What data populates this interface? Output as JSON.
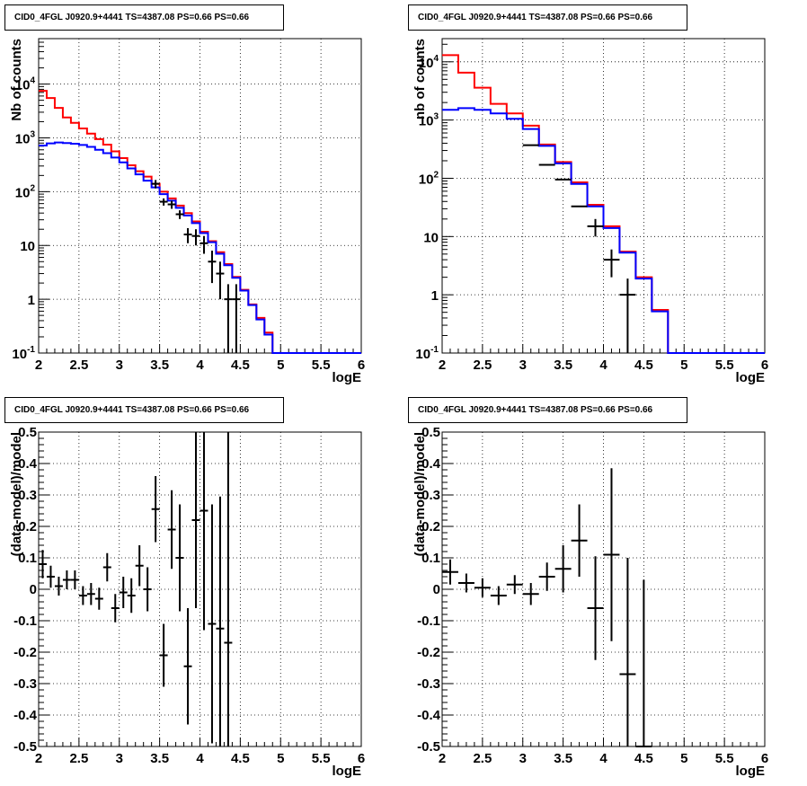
{
  "colors": {
    "total": "#ff0000",
    "model": "#0000ff",
    "data": "#000000",
    "frame": "#000000"
  },
  "chart_data": [
    {
      "id": "tl",
      "type": "line",
      "title": "CID0_4FGL J0920.9+4441 TS=4387.08 PS=0.66 PS=0.66",
      "xlabel": "logE",
      "ylabel": "Nb of counts",
      "xlim": [
        2,
        6
      ],
      "ylim": [
        0.1,
        70000
      ],
      "yscale": "log",
      "grid": true,
      "xticks": [
        "2",
        "2.5",
        "3",
        "3.5",
        "4",
        "4.5",
        "5",
        "5.5",
        "6"
      ],
      "yticks": [
        "10^-1",
        "1",
        "10",
        "10^2",
        "10^3",
        "10^4"
      ],
      "bin_width": 0.1,
      "series": [
        {
          "role": "total",
          "edges_start": 2.0,
          "values": [
            7500,
            5500,
            3600,
            2400,
            1900,
            1500,
            1200,
            950,
            750,
            560,
            420,
            310,
            240,
            190,
            140,
            100,
            75,
            55,
            40,
            28,
            18,
            12,
            7.5,
            4.5,
            2.6,
            1.5,
            0.8,
            0.45,
            0.24,
            0.1,
            0.1,
            0.1,
            0.1,
            0.1,
            0.1,
            0.1,
            0.1,
            0.1,
            0.1,
            0.1
          ]
        },
        {
          "role": "model",
          "edges_start": 2.0,
          "values": [
            720,
            790,
            820,
            800,
            780,
            740,
            680,
            600,
            520,
            430,
            350,
            270,
            210,
            160,
            120,
            90,
            68,
            50,
            36,
            26,
            17,
            11.5,
            7,
            4.3,
            2.5,
            1.45,
            0.78,
            0.42,
            0.22,
            0.1,
            0.1,
            0.1,
            0.1,
            0.1,
            0.1,
            0.1,
            0.1,
            0.1,
            0.1,
            0.1
          ]
        },
        {
          "role": "data",
          "points": [
            [
              3.45,
              140,
              25
            ],
            [
              3.55,
              65,
              10
            ],
            [
              3.65,
              58,
              10
            ],
            [
              3.75,
              38,
              7
            ],
            [
              3.85,
              16,
              5
            ],
            [
              3.95,
              15,
              5
            ],
            [
              4.05,
              11,
              4
            ],
            [
              4.15,
              5,
              3
            ],
            [
              4.25,
              3,
              2
            ],
            [
              4.35,
              1,
              0.9
            ],
            [
              4.45,
              1,
              0.9
            ]
          ]
        }
      ]
    },
    {
      "id": "tr",
      "type": "line",
      "title": "CID0_4FGL J0920.9+4441 TS=4387.08 PS=0.66 PS=0.66",
      "xlabel": "logE",
      "ylabel": "nb of counts",
      "xlim": [
        2,
        6
      ],
      "ylim": [
        0.1,
        25000
      ],
      "yscale": "log",
      "grid": true,
      "xticks": [
        "2",
        "2.5",
        "3",
        "3.5",
        "4",
        "4.5",
        "5",
        "5.5",
        "6"
      ],
      "yticks": [
        "10^-1",
        "1",
        "10",
        "10^2",
        "10^3",
        "10^4"
      ],
      "bin_width": 0.2,
      "series": [
        {
          "role": "total",
          "edges_start": 2.0,
          "values": [
            13000,
            6500,
            3600,
            1900,
            1300,
            800,
            380,
            190,
            85,
            35,
            15,
            5.5,
            2,
            0.55,
            0.1,
            0.1,
            0.1,
            0.1,
            0.1,
            0.1
          ]
        },
        {
          "role": "model",
          "edges_start": 2.0,
          "values": [
            1500,
            1600,
            1500,
            1300,
            1050,
            700,
            360,
            180,
            80,
            33,
            14,
            5.3,
            1.9,
            0.52,
            0.1,
            0.1,
            0.1,
            0.1,
            0.1,
            0.1
          ]
        },
        {
          "role": "data",
          "points": [
            [
              3.1,
              370,
              0
            ],
            [
              3.3,
              170,
              0
            ],
            [
              3.5,
              95,
              0
            ],
            [
              3.7,
              33,
              0
            ],
            [
              3.9,
              15,
              5
            ],
            [
              4.1,
              4,
              2
            ],
            [
              4.3,
              1,
              0.9
            ]
          ]
        }
      ]
    },
    {
      "id": "bl",
      "type": "scatter",
      "title": "CID0_4FGL J0920.9+4441 TS=4387.08 PS=0.66 PS=0.66",
      "xlabel": "logE",
      "ylabel": "(data-model)/model",
      "xlim": [
        2,
        6
      ],
      "ylim": [
        -0.5,
        0.5
      ],
      "grid": true,
      "xticks": [
        "2",
        "2.5",
        "3",
        "3.5",
        "4",
        "4.5",
        "5",
        "5.5",
        "6"
      ],
      "yticks": [
        "-0.5",
        "-0.4",
        "-0.3",
        "-0.2",
        "-0.1",
        "0",
        "0.1",
        "0.2",
        "0.3",
        "0.4",
        "0.5"
      ],
      "bin_width": 0.1,
      "points": [
        [
          2.05,
          0.08,
          0.045
        ],
        [
          2.15,
          0.04,
          0.035
        ],
        [
          2.25,
          0.01,
          0.03
        ],
        [
          2.35,
          0.03,
          0.03
        ],
        [
          2.45,
          0.03,
          0.03
        ],
        [
          2.55,
          -0.02,
          0.03
        ],
        [
          2.65,
          -0.015,
          0.035
        ],
        [
          2.75,
          -0.03,
          0.035
        ],
        [
          2.85,
          0.07,
          0.045
        ],
        [
          2.95,
          -0.06,
          0.045
        ],
        [
          3.05,
          -0.01,
          0.05
        ],
        [
          3.15,
          -0.02,
          0.055
        ],
        [
          3.25,
          0.075,
          0.065
        ],
        [
          3.35,
          0.0,
          0.07
        ],
        [
          3.45,
          0.255,
          0.105
        ],
        [
          3.55,
          -0.21,
          0.1
        ],
        [
          3.65,
          0.19,
          0.125
        ],
        [
          3.75,
          0.1,
          0.17
        ],
        [
          3.85,
          -0.245,
          0.185
        ],
        [
          3.95,
          0.22,
          0.28
        ],
        [
          4.05,
          0.25,
          0.38
        ],
        [
          4.15,
          -0.11,
          0.38
        ],
        [
          4.25,
          -0.125,
          0.42
        ],
        [
          4.35,
          -0.17,
          0.7
        ]
      ]
    },
    {
      "id": "br",
      "type": "scatter",
      "title": "CID0_4FGL J0920.9+4441 TS=4387.08 PS=0.66 PS=0.66",
      "xlabel": "logE",
      "ylabel": "(data-model)/model",
      "xlim": [
        2,
        6
      ],
      "ylim": [
        -0.5,
        0.5
      ],
      "grid": true,
      "xticks": [
        "2",
        "2.5",
        "3",
        "3.5",
        "4",
        "4.5",
        "5",
        "5.5",
        "6"
      ],
      "yticks": [
        "-0.5",
        "-0.4",
        "-0.3",
        "-0.2",
        "-0.1",
        "0",
        "0.1",
        "0.2",
        "0.3",
        "0.4",
        "0.5"
      ],
      "bin_width": 0.2,
      "points": [
        [
          2.1,
          0.055,
          0.04
        ],
        [
          2.3,
          0.02,
          0.03
        ],
        [
          2.5,
          0.005,
          0.03
        ],
        [
          2.7,
          -0.02,
          0.03
        ],
        [
          2.9,
          0.015,
          0.03
        ],
        [
          3.1,
          -0.015,
          0.035
        ],
        [
          3.3,
          0.04,
          0.045
        ],
        [
          3.5,
          0.065,
          0.075
        ],
        [
          3.7,
          0.155,
          0.115
        ],
        [
          3.9,
          -0.06,
          0.165
        ],
        [
          4.1,
          0.11,
          0.275
        ],
        [
          4.3,
          -0.27,
          0.37
        ],
        [
          4.5,
          -0.5,
          0.53
        ]
      ]
    }
  ]
}
